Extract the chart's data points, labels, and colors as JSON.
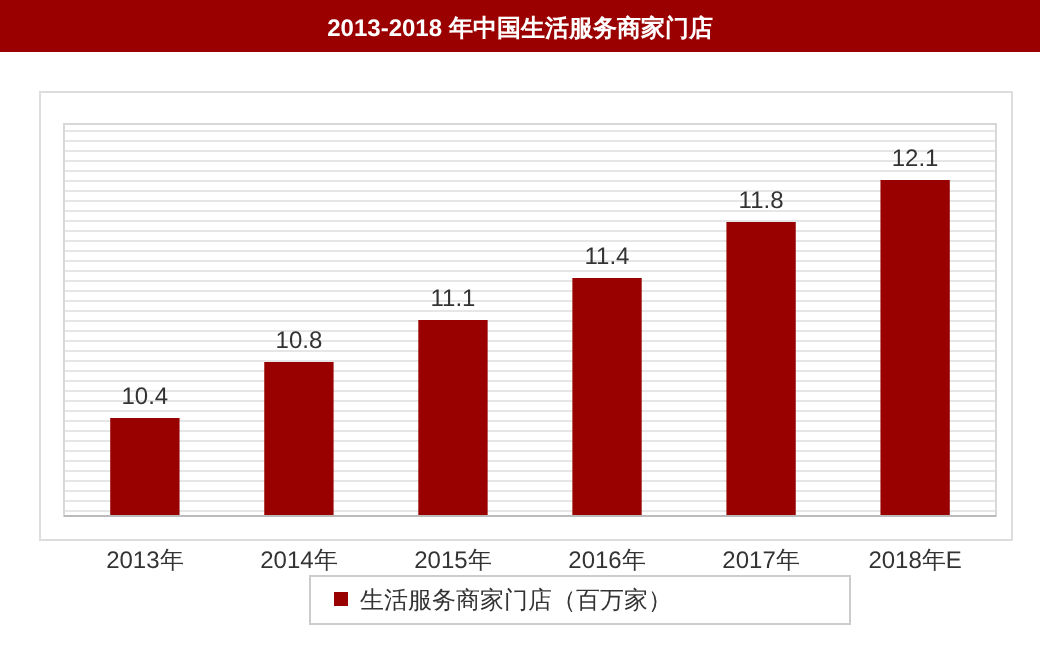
{
  "chart_data": {
    "type": "bar",
    "title": "2013-2018 年中国生活服务商家门店",
    "categories": [
      "2013年",
      "2014年",
      "2015年",
      "2016年",
      "2017年",
      "2018年E"
    ],
    "series": [
      {
        "name": "生活服务商家门店（百万家）",
        "color": "#990000",
        "values": [
          10.4,
          10.8,
          11.1,
          11.4,
          11.8,
          12.1
        ]
      }
    ],
    "ylim": [
      9.7,
      12.5
    ],
    "tick_labels": "x",
    "data_labels": true,
    "legend": "bottom"
  }
}
